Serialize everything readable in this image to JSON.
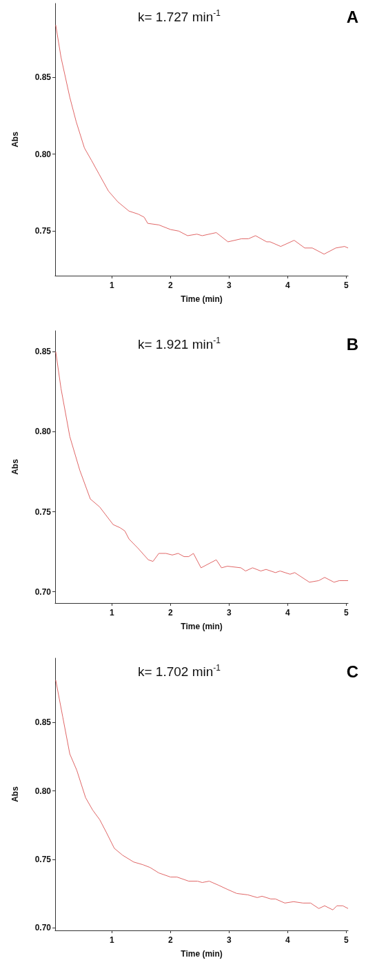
{
  "chart_data": [
    {
      "type": "line",
      "title": "A",
      "annotations": [
        "k= 1.727 min$^{-1}$"
      ],
      "xlabel": "Time (min)",
      "ylabel": "Abs",
      "color": "#e06666",
      "x": [
        0.04,
        0.13,
        0.28,
        0.39,
        0.53,
        0.65,
        0.78,
        0.94,
        1.1,
        1.29,
        1.45,
        1.55,
        1.61,
        1.8,
        2.0,
        2.14,
        2.29,
        2.45,
        2.54,
        2.78,
        2.98,
        3.21,
        3.33,
        3.45,
        3.64,
        3.7,
        3.88,
        4.11,
        4.29,
        4.42,
        4.62,
        4.82,
        4.97,
        5.03
      ],
      "values": [
        0.884,
        0.863,
        0.837,
        0.821,
        0.804,
        0.796,
        0.787,
        0.776,
        0.769,
        0.763,
        0.761,
        0.759,
        0.755,
        0.754,
        0.751,
        0.75,
        0.747,
        0.748,
        0.747,
        0.749,
        0.743,
        0.745,
        0.745,
        0.747,
        0.743,
        0.743,
        0.74,
        0.744,
        0.739,
        0.739,
        0.735,
        0.739,
        0.74,
        0.739
      ],
      "xlim": [
        0.03,
        5.03
      ],
      "ylim": [
        0.721,
        0.898
      ],
      "xticks": [
        1,
        2,
        3,
        4,
        5
      ],
      "yticks": [
        {
          "value": 0.75,
          "label": "0.75"
        },
        {
          "value": 0.8,
          "label": "0.80"
        },
        {
          "value": 0.85,
          "label": "0.85"
        }
      ]
    },
    {
      "type": "line",
      "title": "B",
      "annotations": [
        "k= 1.921 min$^{-1}$"
      ],
      "xlabel": "Time (min)",
      "ylabel": "Abs",
      "color": "#e06666",
      "x": [
        0.04,
        0.13,
        0.28,
        0.45,
        0.63,
        0.79,
        1.02,
        1.14,
        1.22,
        1.29,
        1.45,
        1.62,
        1.7,
        1.8,
        1.92,
        2.03,
        2.13,
        2.23,
        2.31,
        2.39,
        2.52,
        2.78,
        2.87,
        2.97,
        3.2,
        3.28,
        3.4,
        3.54,
        3.63,
        3.79,
        3.87,
        4.04,
        4.12,
        4.37,
        4.53,
        4.63,
        4.79,
        4.88,
        4.96,
        5.03
      ],
      "values": [
        0.85,
        0.827,
        0.797,
        0.776,
        0.758,
        0.753,
        0.742,
        0.74,
        0.738,
        0.733,
        0.727,
        0.72,
        0.719,
        0.724,
        0.724,
        0.723,
        0.724,
        0.722,
        0.722,
        0.724,
        0.715,
        0.72,
        0.715,
        0.716,
        0.715,
        0.713,
        0.715,
        0.713,
        0.714,
        0.712,
        0.713,
        0.711,
        0.712,
        0.706,
        0.707,
        0.709,
        0.706,
        0.707,
        0.707,
        0.707
      ],
      "xlim": [
        0.03,
        5.03
      ],
      "ylim": [
        0.693,
        0.863
      ],
      "xticks": [
        1,
        2,
        3,
        4,
        5
      ],
      "yticks": [
        {
          "value": 0.7,
          "label": "0.70"
        },
        {
          "value": 0.75,
          "label": "0.75"
        },
        {
          "value": 0.8,
          "label": "0.80"
        },
        {
          "value": 0.85,
          "label": "0.85"
        }
      ]
    },
    {
      "type": "line",
      "title": "C",
      "annotations": [
        "k= 1.702 min$^{-1}$"
      ],
      "xlabel": "Time (min)",
      "ylabel": "Abs",
      "color": "#e06666",
      "x": [
        0.04,
        0.16,
        0.28,
        0.4,
        0.55,
        0.67,
        0.79,
        0.9,
        1.04,
        1.18,
        1.37,
        1.53,
        1.65,
        1.8,
        2.0,
        2.11,
        2.31,
        2.46,
        2.54,
        2.66,
        2.82,
        2.97,
        3.13,
        3.32,
        3.48,
        3.56,
        3.71,
        3.79,
        3.95,
        4.1,
        4.26,
        4.39,
        4.53,
        4.63,
        4.77,
        4.84,
        4.94,
        5.03
      ],
      "values": [
        0.881,
        0.854,
        0.827,
        0.815,
        0.795,
        0.786,
        0.779,
        0.77,
        0.758,
        0.753,
        0.748,
        0.746,
        0.744,
        0.74,
        0.737,
        0.737,
        0.734,
        0.734,
        0.733,
        0.734,
        0.731,
        0.728,
        0.725,
        0.724,
        0.722,
        0.723,
        0.721,
        0.721,
        0.718,
        0.719,
        0.718,
        0.718,
        0.714,
        0.716,
        0.713,
        0.716,
        0.716,
        0.714
      ],
      "xlim": [
        0.03,
        5.03
      ],
      "ylim": [
        0.698,
        0.897
      ],
      "xticks": [
        1,
        2,
        3,
        4,
        5
      ],
      "yticks": [
        {
          "value": 0.7,
          "label": "0.70"
        },
        {
          "value": 0.75,
          "label": "0.75"
        },
        {
          "value": 0.8,
          "label": "0.80"
        },
        {
          "value": 0.85,
          "label": "0.85"
        }
      ]
    }
  ]
}
